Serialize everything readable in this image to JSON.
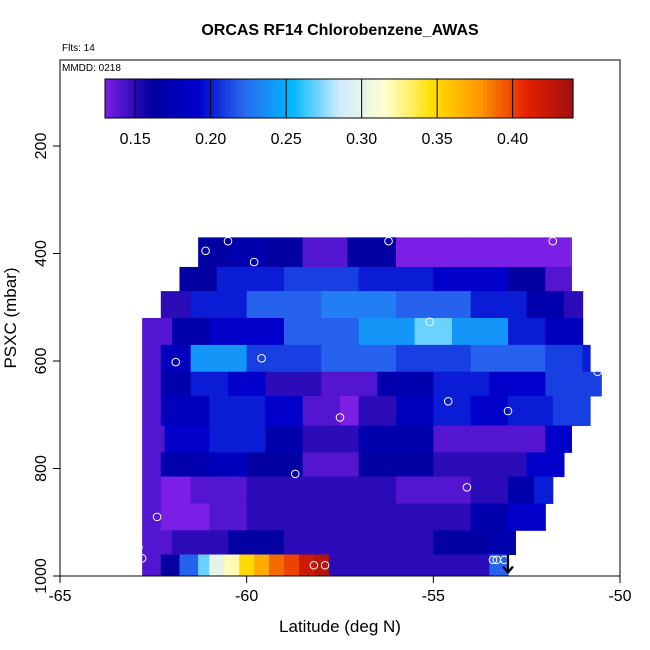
{
  "chart_data": {
    "type": "heatmap",
    "title": "ORCAS RF14 Chlorobenzene_AWAS",
    "annotations": [
      "Flts: 14",
      "MMDD: 0218"
    ],
    "xlabel": "Latitude (deg N)",
    "ylabel": "PSXC (mbar)",
    "xlim": [
      -65,
      -50
    ],
    "ylim": [
      1000,
      40
    ],
    "x_ticks": [
      -65,
      -60,
      -55,
      -50
    ],
    "y_ticks": [
      200,
      400,
      600,
      800,
      1000
    ],
    "y_reversed": true,
    "colorbar": {
      "range": [
        0.13,
        0.44
      ],
      "ticks": [
        0.15,
        0.2,
        0.25,
        0.3,
        0.35,
        0.4
      ],
      "tick_labels": [
        "0.15",
        "0.20",
        "0.25",
        "0.30",
        "0.35",
        "0.40"
      ],
      "colors": [
        "#7b1fe6",
        "#0000a0",
        "#0000cd",
        "#2a6df0",
        "#00b8ff",
        "#cfeaff",
        "#ffffd0",
        "#ffe000",
        "#ff9800",
        "#e62000",
        "#a01010"
      ]
    },
    "bands": [
      {
        "p_top": 370,
        "p_bot": 425,
        "lat_from": -61.3,
        "lat_to": -51.3,
        "segments": [
          [
            -61.3,
            0.16
          ],
          [
            -60.5,
            0.17
          ],
          [
            -59.5,
            0.16
          ],
          [
            -58.5,
            0.14
          ],
          [
            -57.3,
            0.16
          ],
          [
            -56.0,
            0.13
          ],
          [
            -54.0,
            0.13
          ],
          [
            -53.0,
            0.13
          ]
        ]
      },
      {
        "p_top": 425,
        "p_bot": 470,
        "lat_from": -61.8,
        "lat_to": -51.3,
        "segments": [
          [
            -61.8,
            0.16
          ],
          [
            -60.8,
            0.2
          ],
          [
            -59.0,
            0.21
          ],
          [
            -57.0,
            0.2
          ],
          [
            -55.0,
            0.19
          ],
          [
            -53.0,
            0.16
          ],
          [
            -52.0,
            0.14
          ]
        ]
      },
      {
        "p_top": 470,
        "p_bot": 520,
        "lat_from": -62.3,
        "lat_to": -51.0,
        "segments": [
          [
            -62.3,
            0.15
          ],
          [
            -61.5,
            0.2
          ],
          [
            -60.0,
            0.22
          ],
          [
            -58.0,
            0.23
          ],
          [
            -56.0,
            0.22
          ],
          [
            -54.0,
            0.2
          ],
          [
            -52.5,
            0.17
          ],
          [
            -51.5,
            0.15
          ]
        ]
      },
      {
        "p_top": 520,
        "p_bot": 570,
        "lat_from": -62.8,
        "lat_to": -51.0,
        "segments": [
          [
            -62.8,
            0.14
          ],
          [
            -62.0,
            0.17
          ],
          [
            -61.0,
            0.19
          ],
          [
            -59.0,
            0.22
          ],
          [
            -57.0,
            0.24
          ],
          [
            -55.5,
            0.27
          ],
          [
            -54.5,
            0.24
          ],
          [
            -53.0,
            0.2
          ],
          [
            -52.0,
            0.18
          ]
        ]
      },
      {
        "p_top": 570,
        "p_bot": 620,
        "lat_from": -62.8,
        "lat_to": -50.8,
        "segments": [
          [
            -62.8,
            0.14
          ],
          [
            -62.3,
            0.18
          ],
          [
            -61.5,
            0.24
          ],
          [
            -60.0,
            0.21
          ],
          [
            -58.0,
            0.22
          ],
          [
            -56.0,
            0.21
          ],
          [
            -54.0,
            0.22
          ],
          [
            -52.0,
            0.21
          ],
          [
            -51.0,
            0.2
          ]
        ]
      },
      {
        "p_top": 620,
        "p_bot": 665,
        "lat_from": -62.8,
        "lat_to": -50.5,
        "segments": [
          [
            -62.8,
            0.14
          ],
          [
            -62.3,
            0.17
          ],
          [
            -61.5,
            0.2
          ],
          [
            -60.5,
            0.19
          ],
          [
            -59.5,
            0.15
          ],
          [
            -58.0,
            0.14
          ],
          [
            -56.5,
            0.17
          ],
          [
            -55.0,
            0.2
          ],
          [
            -53.5,
            0.19
          ],
          [
            -52.0,
            0.21
          ]
        ]
      },
      {
        "p_top": 665,
        "p_bot": 720,
        "lat_from": -62.8,
        "lat_to": -50.8,
        "segments": [
          [
            -62.8,
            0.14
          ],
          [
            -62.3,
            0.18
          ],
          [
            -61.0,
            0.2
          ],
          [
            -59.5,
            0.19
          ],
          [
            -58.5,
            0.14
          ],
          [
            -57.8,
            0.14
          ],
          [
            -57.5,
            0.12
          ],
          [
            -57.0,
            0.15
          ],
          [
            -56.0,
            0.18
          ],
          [
            -55.0,
            0.2
          ],
          [
            -54.0,
            0.19
          ],
          [
            -53.0,
            0.2
          ],
          [
            -51.8,
            0.21
          ]
        ]
      },
      {
        "p_top": 720,
        "p_bot": 770,
        "lat_from": -62.8,
        "lat_to": -51.3,
        "segments": [
          [
            -62.8,
            0.14
          ],
          [
            -62.2,
            0.19
          ],
          [
            -61.0,
            0.2
          ],
          [
            -59.5,
            0.17
          ],
          [
            -58.5,
            0.15
          ],
          [
            -57.0,
            0.17
          ],
          [
            -55.0,
            0.14
          ],
          [
            -53.0,
            0.14
          ],
          [
            -52.0,
            0.19
          ]
        ]
      },
      {
        "p_top": 770,
        "p_bot": 815,
        "lat_from": -62.8,
        "lat_to": -51.5,
        "segments": [
          [
            -62.8,
            0.14
          ],
          [
            -62.3,
            0.17
          ],
          [
            -61.0,
            0.18
          ],
          [
            -60.0,
            0.16
          ],
          [
            -58.5,
            0.14
          ],
          [
            -57.0,
            0.16
          ],
          [
            -55.0,
            0.15
          ],
          [
            -53.5,
            0.15
          ],
          [
            -52.5,
            0.19
          ]
        ]
      },
      {
        "p_top": 815,
        "p_bot": 865,
        "lat_from": -62.8,
        "lat_to": -51.8,
        "segments": [
          [
            -62.8,
            0.14
          ],
          [
            -62.3,
            0.13
          ],
          [
            -61.5,
            0.14
          ],
          [
            -60.0,
            0.15
          ],
          [
            -58.0,
            0.15
          ],
          [
            -56.0,
            0.14
          ],
          [
            -54.0,
            0.15
          ],
          [
            -53.0,
            0.17
          ],
          [
            -52.3,
            0.2
          ]
        ]
      },
      {
        "p_top": 865,
        "p_bot": 915,
        "lat_from": -62.8,
        "lat_to": -52.0,
        "segments": [
          [
            -62.8,
            0.14
          ],
          [
            -62.3,
            0.13
          ],
          [
            -61.0,
            0.14
          ],
          [
            -60.0,
            0.15
          ],
          [
            -58.5,
            0.15
          ],
          [
            -57.0,
            0.15
          ],
          [
            -55.5,
            0.15
          ],
          [
            -54.0,
            0.17
          ],
          [
            -53.0,
            0.19
          ]
        ]
      },
      {
        "p_top": 915,
        "p_bot": 960,
        "lat_from": -62.8,
        "lat_to": -52.8,
        "segments": [
          [
            -62.8,
            0.14
          ],
          [
            -62.0,
            0.15
          ],
          [
            -60.5,
            0.16
          ],
          [
            -59.0,
            0.15
          ],
          [
            -57.0,
            0.15
          ],
          [
            -55.0,
            0.16
          ],
          [
            -53.5,
            0.17
          ]
        ]
      },
      {
        "p_top": 960,
        "p_bot": 1000,
        "lat_from": -62.8,
        "lat_to": -53.0,
        "segments": [
          [
            -62.8,
            0.14
          ],
          [
            -62.3,
            0.16
          ],
          [
            -61.8,
            0.22
          ],
          [
            -61.3,
            0.27
          ],
          [
            -61.0,
            0.3
          ],
          [
            -60.6,
            0.32
          ],
          [
            -60.2,
            0.35
          ],
          [
            -59.8,
            0.37
          ],
          [
            -59.4,
            0.39
          ],
          [
            -59.0,
            0.4
          ],
          [
            -58.6,
            0.42
          ],
          [
            -58.2,
            0.43
          ],
          [
            -57.8,
            0.15
          ],
          [
            -56.0,
            0.15
          ],
          [
            -54.0,
            0.15
          ],
          [
            -53.5,
            0.22
          ]
        ]
      }
    ],
    "sample_points": [
      {
        "x": -61.1,
        "y": 395
      },
      {
        "x": -60.5,
        "y": 377
      },
      {
        "x": -59.8,
        "y": 416
      },
      {
        "x": -56.2,
        "y": 377
      },
      {
        "x": -51.8,
        "y": 377
      },
      {
        "x": -63.0,
        "y": 517
      },
      {
        "x": -55.1,
        "y": 527
      },
      {
        "x": -61.9,
        "y": 602
      },
      {
        "x": -59.6,
        "y": 595
      },
      {
        "x": -50.6,
        "y": 620
      },
      {
        "x": -57.5,
        "y": 705
      },
      {
        "x": -54.6,
        "y": 675
      },
      {
        "x": -53.0,
        "y": 693
      },
      {
        "x": -58.7,
        "y": 810
      },
      {
        "x": -54.1,
        "y": 835
      },
      {
        "x": -62.4,
        "y": 890
      },
      {
        "x": -62.9,
        "y": 947
      },
      {
        "x": -62.8,
        "y": 967
      },
      {
        "x": -58.2,
        "y": 980
      },
      {
        "x": -57.9,
        "y": 980
      },
      {
        "x": -53.4,
        "y": 970
      },
      {
        "x": -53.3,
        "y": 970
      },
      {
        "x": -53.1,
        "y": 970
      }
    ],
    "arrow_marker": {
      "x": -53.0,
      "y": 960
    }
  }
}
